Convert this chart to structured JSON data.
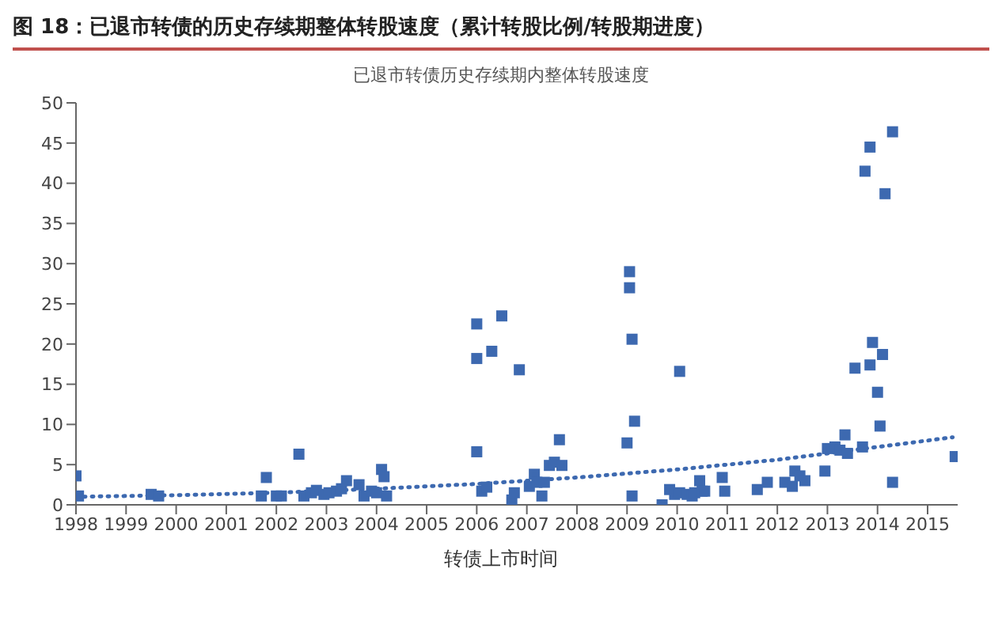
{
  "chart_data": {
    "type": "scatter",
    "title": "图 18：已退市转债的历史存续期整体转股速度（累计转股比例/转股期进度）",
    "subtitle": "已退市转债历史存续期内整体转股速度",
    "xlabel": "转债上市时间",
    "xlim": [
      1998,
      2015.6
    ],
    "xticks": [
      1998,
      1999,
      2000,
      2001,
      2002,
      2003,
      2004,
      2005,
      2006,
      2007,
      2008,
      2009,
      2010,
      2011,
      2012,
      2013,
      2014,
      2015
    ],
    "ylim": [
      0,
      50
    ],
    "yticks": [
      0,
      5,
      10,
      15,
      20,
      25,
      30,
      35,
      40,
      45,
      50
    ],
    "grid": false,
    "legend": false,
    "series": [
      {
        "marker": "square",
        "color": "#3d69b0",
        "x": [
          1998.0,
          1998.05,
          1999.5,
          1999.65,
          2001.7,
          2001.8,
          2002.0,
          2002.1,
          2002.45,
          2002.55,
          2002.7,
          2002.8,
          2002.95,
          2003.05,
          2003.2,
          2003.3,
          2003.4,
          2003.65,
          2003.75,
          2003.9,
          2004.0,
          2004.1,
          2004.15,
          2004.2,
          2006.0,
          2006.0,
          2006.3,
          2006.0,
          2006.5,
          2006.1,
          2006.2,
          2006.7,
          2006.75,
          2006.85,
          2007.05,
          2007.15,
          2007.2,
          2007.3,
          2007.35,
          2007.45,
          2007.55,
          2007.65,
          2007.7,
          2009.0,
          2009.15,
          2009.1,
          2009.05,
          2009.05,
          2009.1,
          2009.7,
          2009.85,
          2009.95,
          2010.05,
          2010.05,
          2010.2,
          2010.3,
          2010.35,
          2010.45,
          2010.5,
          2010.55,
          2010.9,
          2010.95,
          2011.6,
          2011.8,
          2012.15,
          2012.3,
          2012.35,
          2012.45,
          2012.55,
          2012.95,
          2013.0,
          2013.15,
          2013.25,
          2013.35,
          2013.4,
          2013.55,
          2013.7,
          2013.85,
          2013.9,
          2014.1,
          2014.0,
          2014.05,
          2014.3,
          2015.55,
          2014.3,
          2013.85,
          2013.75,
          2014.15
        ],
        "values": [
          3.6,
          1.1,
          1.3,
          1.1,
          1.1,
          3.4,
          1.1,
          1.1,
          6.3,
          1.1,
          1.5,
          1.8,
          1.3,
          1.5,
          1.7,
          2.0,
          3.0,
          2.5,
          1.1,
          1.7,
          1.5,
          4.4,
          3.5,
          1.1,
          6.6,
          18.2,
          19.1,
          22.5,
          23.5,
          1.7,
          2.2,
          0.6,
          1.5,
          16.8,
          2.3,
          3.8,
          2.8,
          1.1,
          2.8,
          4.9,
          5.3,
          8.1,
          4.9,
          7.7,
          10.4,
          1.1,
          29,
          27,
          20.6,
          0,
          1.9,
          1.3,
          16.6,
          1.5,
          1.3,
          1.1,
          1.5,
          3.0,
          1.7,
          1.7,
          3.4,
          1.7,
          1.9,
          2.8,
          2.8,
          2.3,
          4.2,
          3.6,
          3.0,
          4.2,
          7.0,
          7.2,
          6.8,
          8.7,
          6.4,
          17.0,
          7.2,
          17.4,
          20.2,
          18.7,
          14.0,
          9.8,
          2.8,
          6.0,
          46.4,
          44.5,
          41.5,
          38.7
        ]
      },
      {
        "type": "line",
        "color": "#3d69b0",
        "line_style": "dotted",
        "x": [
          1998,
          2000,
          2002,
          2004,
          2006,
          2008,
          2010,
          2012,
          2014,
          2015.5
        ],
        "values": [
          1.0,
          1.2,
          1.5,
          2.0,
          2.6,
          3.4,
          4.4,
          5.6,
          7.2,
          8.4
        ]
      }
    ]
  }
}
